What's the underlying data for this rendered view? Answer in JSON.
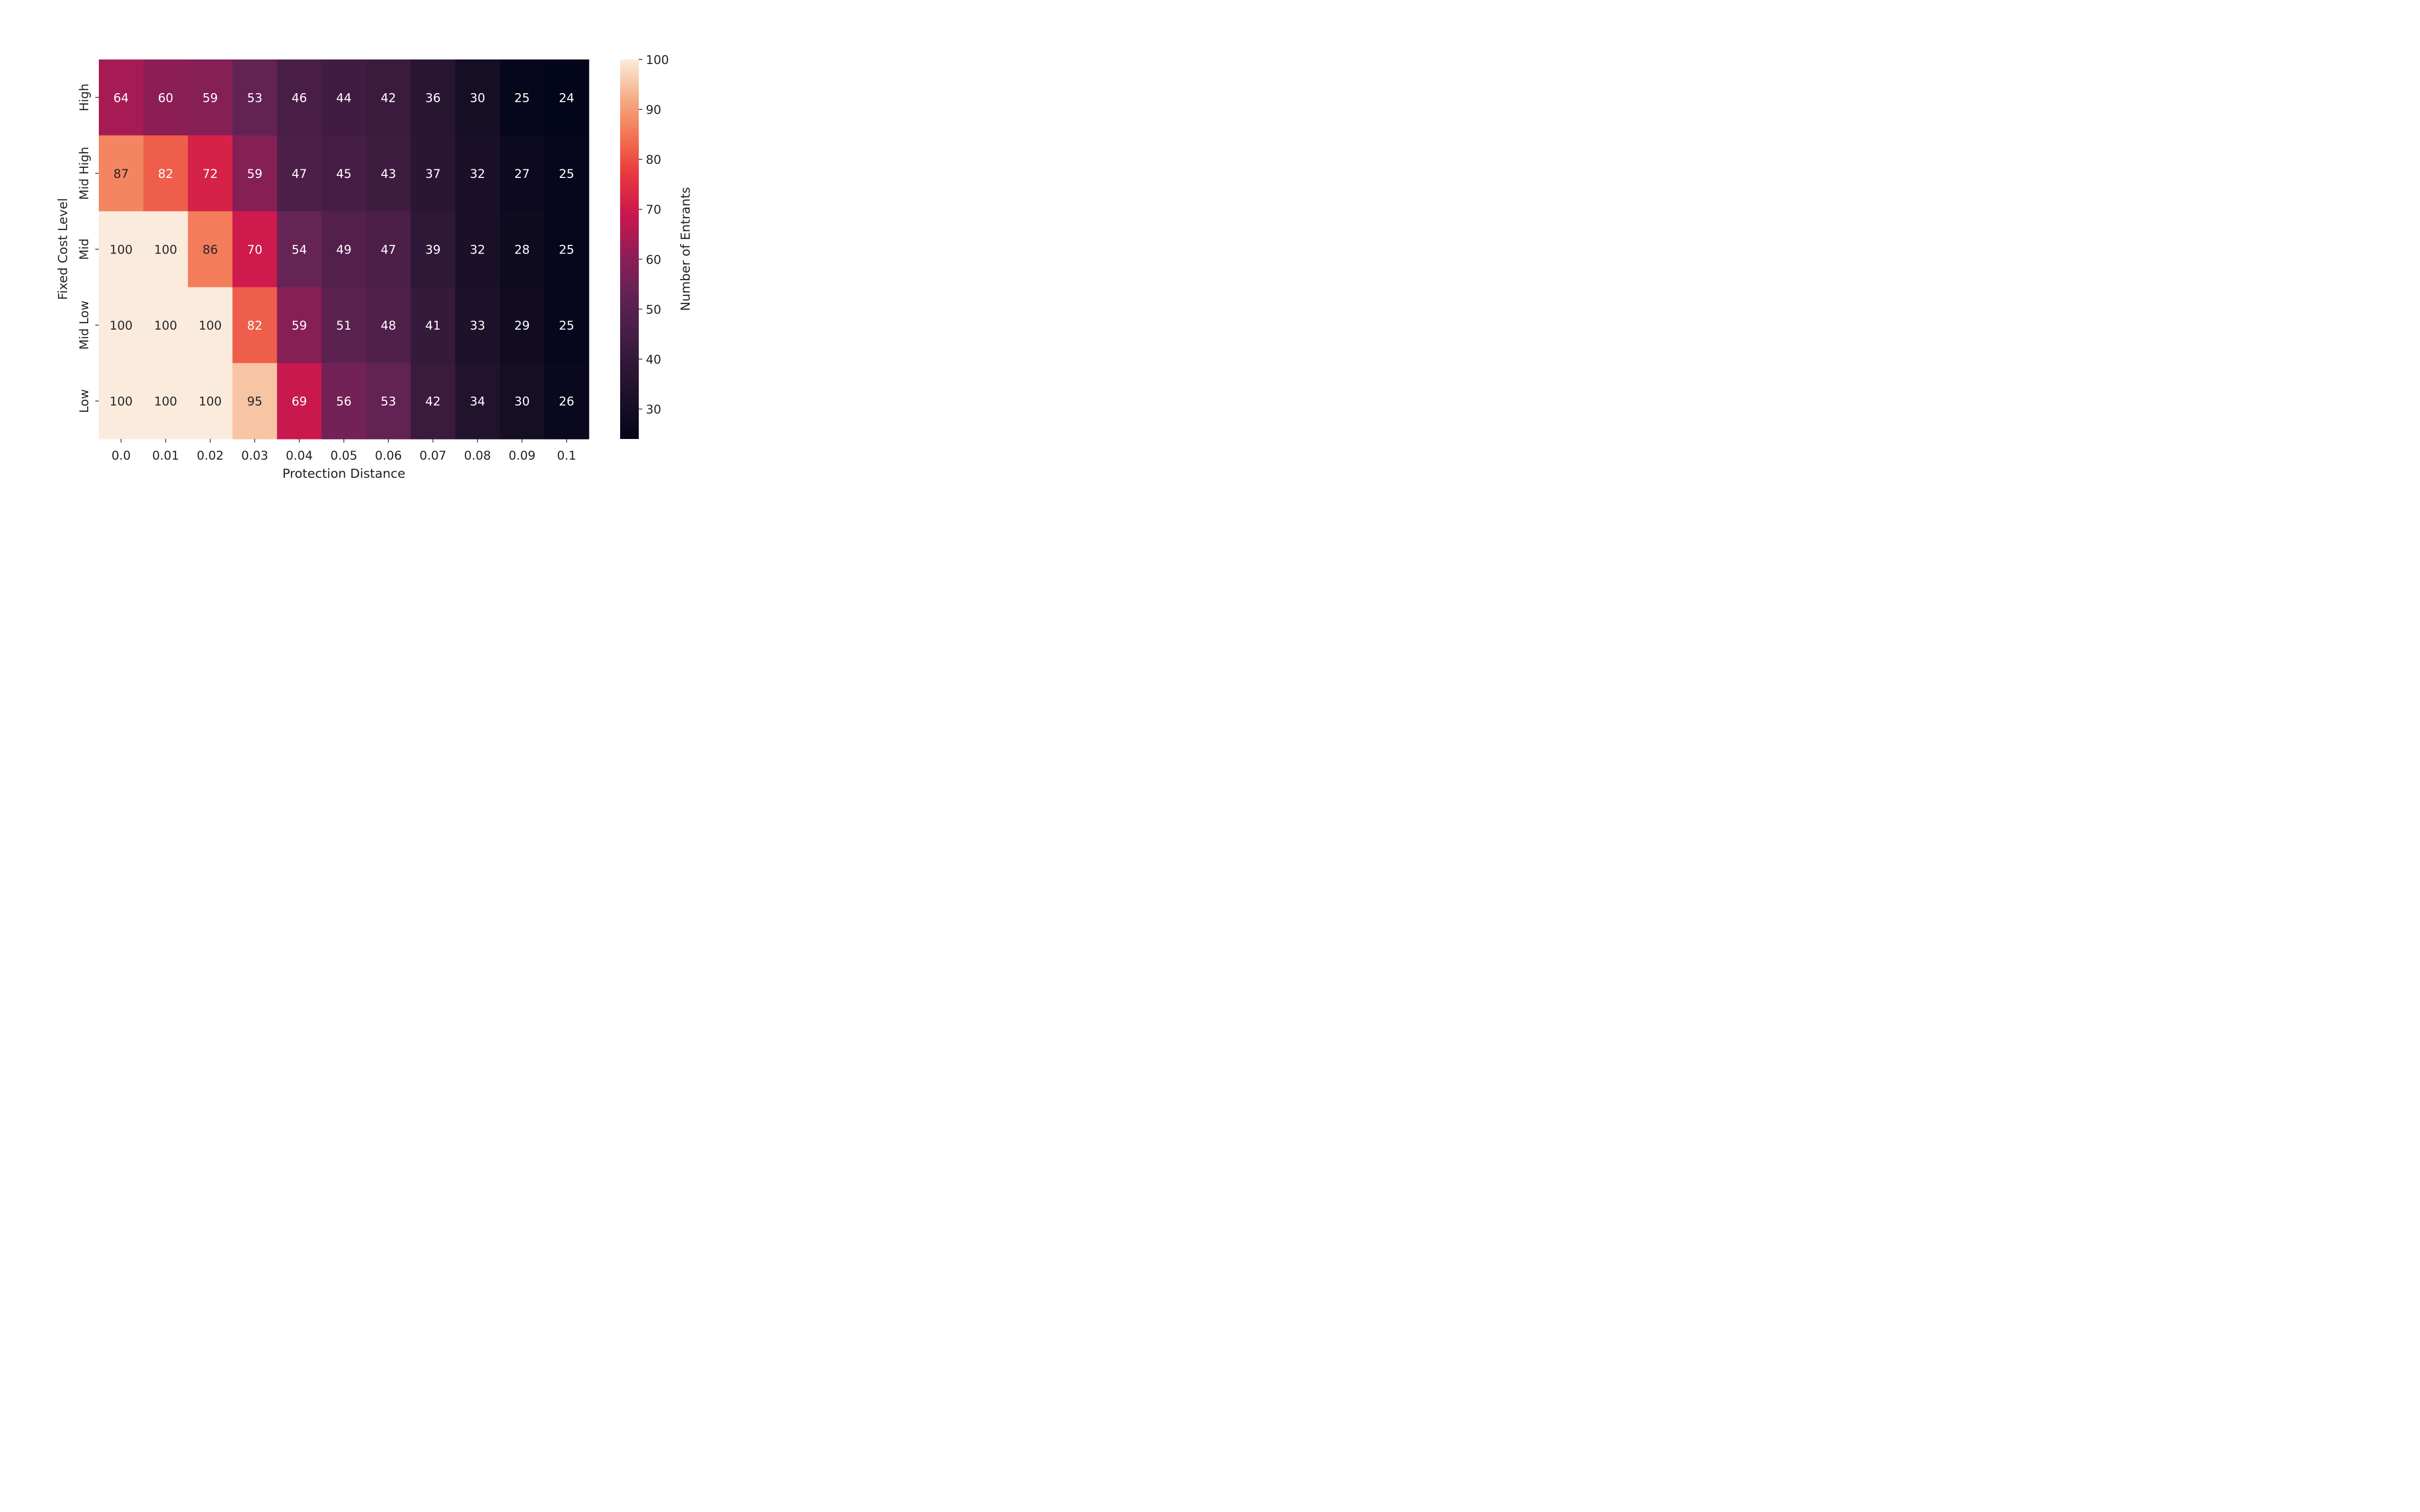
{
  "chart_data": {
    "type": "heatmap",
    "title": "",
    "xlabel": "Protection Distance",
    "ylabel": "Fixed Cost Level",
    "x_categories": [
      "0.0",
      "0.01",
      "0.02",
      "0.03",
      "0.04",
      "0.05",
      "0.06",
      "0.07",
      "0.08",
      "0.09",
      "0.1"
    ],
    "y_categories": [
      "High",
      "Mid High",
      "Mid",
      "Mid Low",
      "Low"
    ],
    "values": [
      [
        64,
        60,
        59,
        53,
        46,
        44,
        42,
        36,
        30,
        25,
        24
      ],
      [
        87,
        82,
        72,
        59,
        47,
        45,
        43,
        37,
        32,
        27,
        25
      ],
      [
        100,
        100,
        86,
        70,
        54,
        49,
        47,
        39,
        32,
        28,
        25
      ],
      [
        100,
        100,
        100,
        82,
        59,
        51,
        48,
        41,
        33,
        29,
        25
      ],
      [
        100,
        100,
        100,
        95,
        69,
        56,
        53,
        42,
        34,
        30,
        26
      ]
    ],
    "colorbar": {
      "label": "Number of Entrants",
      "range": [
        24,
        100
      ],
      "ticks": [
        "30",
        "40",
        "50",
        "60",
        "70",
        "80",
        "90",
        "100"
      ],
      "colormap": "rocket"
    }
  }
}
